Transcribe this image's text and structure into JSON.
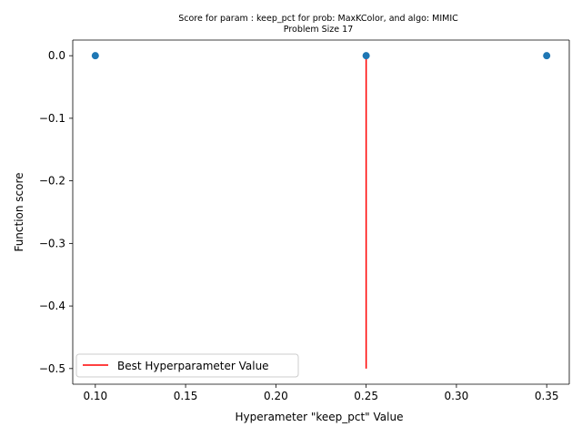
{
  "chart_data": {
    "type": "scatter",
    "title": "Score for param : keep_pct for prob: MaxKColor, and algo: MIMIC",
    "subtitle": "Problem Size 17",
    "xlabel": "Hyperameter \"keep_pct\" Value",
    "ylabel": "Function score",
    "xlim": [
      0.0875,
      0.3625
    ],
    "ylim": [
      -0.525,
      0.025
    ],
    "x_ticks": [
      0.1,
      0.15,
      0.2,
      0.25,
      0.3,
      0.35
    ],
    "x_tick_labels": [
      "0.10",
      "0.15",
      "0.20",
      "0.25",
      "0.30",
      "0.35"
    ],
    "y_ticks": [
      0.0,
      -0.1,
      -0.2,
      -0.3,
      -0.4,
      -0.5
    ],
    "y_tick_labels": [
      "0.0",
      "−0.1",
      "−0.2",
      "−0.3",
      "−0.4",
      "−0.5"
    ],
    "grid": false,
    "legend_position": "lower-left",
    "series": [
      {
        "type": "scatter",
        "color": "#1f77b4",
        "x": [
          0.1,
          0.25,
          0.35
        ],
        "y": [
          0.0,
          0.0,
          0.0
        ]
      },
      {
        "type": "vline",
        "name": "Best Hyperparameter Value",
        "color": "#ff0000",
        "x": 0.25,
        "y_range": [
          -0.5,
          0.0
        ]
      }
    ]
  }
}
